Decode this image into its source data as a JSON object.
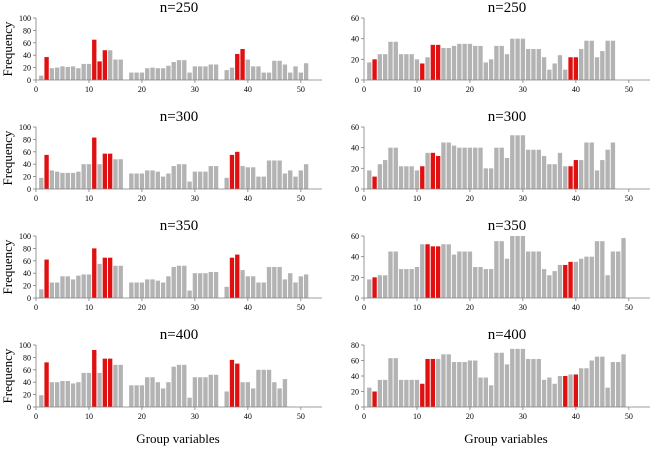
{
  "figure": {
    "x_axis_label": "Group variables",
    "colors": {
      "gray": "#b3b3b3",
      "red": "#e01010",
      "axis": "#7f7f7f",
      "text": "#000000"
    }
  },
  "chart_data": [
    {
      "type": "bar",
      "column": "left",
      "row": 1,
      "title": "n=250",
      "ylabel": "Frequency",
      "xlabel": "",
      "ylim": [
        0,
        100
      ],
      "yticks": [
        0,
        20,
        40,
        60,
        80,
        100
      ],
      "xticks": [
        0,
        10,
        20,
        30,
        40,
        50
      ],
      "x": [
        1,
        2,
        3,
        4,
        5,
        6,
        7,
        8,
        9,
        10,
        11,
        12,
        13,
        14,
        15,
        16,
        17,
        18,
        19,
        20,
        21,
        22,
        23,
        24,
        25,
        26,
        27,
        28,
        29,
        30,
        31,
        32,
        33,
        34,
        35,
        36,
        37,
        38,
        39,
        40,
        41,
        42,
        43,
        44,
        45,
        46,
        47,
        48,
        49,
        50,
        51,
        52,
        53
      ],
      "values": [
        7,
        37,
        19,
        20,
        22,
        21,
        22,
        19,
        26,
        26,
        65,
        30,
        48,
        48,
        33,
        33,
        0,
        12,
        12,
        12,
        19,
        20,
        19,
        19,
        23,
        29,
        32,
        32,
        12,
        22,
        22,
        22,
        25,
        25,
        0,
        16,
        20,
        42,
        50,
        33,
        22,
        22,
        12,
        12,
        31,
        31,
        25,
        12,
        22,
        12,
        27,
        0,
        0
      ],
      "highlight": [
        2,
        11,
        12,
        13,
        38,
        39
      ]
    },
    {
      "type": "bar",
      "column": "left",
      "row": 2,
      "title": "n=300",
      "ylabel": "Frequency",
      "xlabel": "",
      "ylim": [
        0,
        100
      ],
      "yticks": [
        0,
        20,
        40,
        60,
        80,
        100
      ],
      "xticks": [
        0,
        10,
        20,
        30,
        40,
        50
      ],
      "x": [
        1,
        2,
        3,
        4,
        5,
        6,
        7,
        8,
        9,
        10,
        11,
        12,
        13,
        14,
        15,
        16,
        17,
        18,
        19,
        20,
        21,
        22,
        23,
        24,
        25,
        26,
        27,
        28,
        29,
        30,
        31,
        32,
        33,
        34,
        35,
        36,
        37,
        38,
        39,
        40,
        41,
        42,
        43,
        44,
        45,
        46,
        47,
        48,
        49,
        50,
        51,
        52,
        53
      ],
      "values": [
        18,
        55,
        30,
        28,
        26,
        26,
        26,
        28,
        40,
        40,
        83,
        40,
        57,
        57,
        48,
        48,
        0,
        25,
        25,
        25,
        30,
        30,
        28,
        20,
        25,
        37,
        40,
        40,
        12,
        28,
        28,
        28,
        37,
        37,
        0,
        18,
        55,
        60,
        37,
        35,
        35,
        20,
        20,
        46,
        46,
        46,
        25,
        30,
        20,
        30,
        40,
        0,
        0
      ],
      "highlight": [
        2,
        11,
        13,
        14,
        37,
        38
      ]
    },
    {
      "type": "bar",
      "column": "left",
      "row": 3,
      "title": "n=350",
      "ylabel": "Frequency",
      "xlabel": "",
      "ylim": [
        0,
        100
      ],
      "yticks": [
        0,
        20,
        40,
        60,
        80,
        100
      ],
      "xticks": [
        0,
        10,
        20,
        30,
        40,
        50
      ],
      "x": [
        1,
        2,
        3,
        4,
        5,
        6,
        7,
        8,
        9,
        10,
        11,
        12,
        13,
        14,
        15,
        16,
        17,
        18,
        19,
        20,
        21,
        22,
        23,
        24,
        25,
        26,
        27,
        28,
        29,
        30,
        31,
        32,
        33,
        34,
        35,
        36,
        37,
        38,
        39,
        40,
        41,
        42,
        43,
        44,
        45,
        46,
        47,
        48,
        49,
        50,
        51,
        52,
        53
      ],
      "values": [
        14,
        62,
        25,
        25,
        35,
        35,
        30,
        36,
        38,
        38,
        80,
        55,
        65,
        65,
        52,
        52,
        0,
        25,
        25,
        25,
        30,
        30,
        28,
        25,
        35,
        50,
        52,
        52,
        12,
        40,
        40,
        40,
        42,
        42,
        0,
        18,
        65,
        70,
        45,
        35,
        35,
        25,
        25,
        50,
        50,
        50,
        30,
        40,
        25,
        35,
        38,
        0,
        0
      ],
      "highlight": [
        2,
        11,
        13,
        14,
        37,
        38
      ]
    },
    {
      "type": "bar",
      "column": "left",
      "row": 4,
      "title": "n=400",
      "ylabel": "Frequency",
      "xlabel": "",
      "ylim": [
        0,
        100
      ],
      "yticks": [
        0,
        20,
        40,
        60,
        80,
        100
      ],
      "xticks": [
        0,
        10,
        20,
        30,
        40,
        50
      ],
      "x": [
        1,
        2,
        3,
        4,
        5,
        6,
        7,
        8,
        9,
        10,
        11,
        12,
        13,
        14,
        15,
        16,
        17,
        18,
        19,
        20,
        21,
        22,
        23,
        24,
        25,
        26,
        27,
        28,
        29,
        30,
        31,
        32,
        33,
        34,
        35,
        36,
        37,
        38,
        39,
        40,
        41,
        42,
        43,
        44,
        45,
        46,
        47,
        48,
        49,
        50,
        51,
        52,
        53
      ],
      "values": [
        19,
        72,
        40,
        40,
        42,
        42,
        38,
        40,
        55,
        55,
        92,
        55,
        78,
        78,
        68,
        68,
        0,
        35,
        35,
        35,
        48,
        48,
        40,
        30,
        40,
        65,
        68,
        68,
        15,
        48,
        48,
        48,
        52,
        52,
        0,
        25,
        76,
        70,
        40,
        40,
        30,
        60,
        60,
        60,
        40,
        30,
        45,
        0,
        0,
        0,
        0,
        0,
        0
      ],
      "highlight": [
        2,
        11,
        13,
        14,
        37,
        38
      ]
    },
    {
      "type": "bar",
      "column": "right",
      "row": 1,
      "title": "n=250",
      "ylabel": "",
      "xlabel": "",
      "ylim": [
        0,
        60
      ],
      "yticks": [
        0,
        20,
        40,
        60
      ],
      "xticks": [
        0,
        10,
        20,
        30,
        40,
        50
      ],
      "x": [
        1,
        2,
        3,
        4,
        5,
        6,
        7,
        8,
        9,
        10,
        11,
        12,
        13,
        14,
        15,
        16,
        17,
        18,
        19,
        20,
        21,
        22,
        23,
        24,
        25,
        26,
        27,
        28,
        29,
        30,
        31,
        32,
        33,
        34,
        35,
        36,
        37,
        38,
        39,
        40,
        41,
        42,
        43,
        44,
        45,
        46,
        47,
        48,
        49,
        50,
        51,
        52,
        53
      ],
      "values": [
        17,
        20,
        25,
        25,
        37,
        37,
        25,
        25,
        25,
        20,
        16,
        22,
        34,
        34,
        31,
        31,
        33,
        35,
        35,
        35,
        33,
        33,
        17,
        20,
        33,
        33,
        25,
        40,
        40,
        40,
        30,
        30,
        30,
        22,
        10,
        16,
        24,
        10,
        22,
        22,
        30,
        38,
        38,
        22,
        28,
        38,
        38,
        0,
        0,
        0,
        0,
        0,
        0
      ],
      "highlight": [
        2,
        11,
        13,
        14,
        39,
        40
      ]
    },
    {
      "type": "bar",
      "column": "right",
      "row": 2,
      "title": "n=300",
      "ylabel": "",
      "xlabel": "",
      "ylim": [
        0,
        60
      ],
      "yticks": [
        0,
        20,
        40,
        60
      ],
      "xticks": [
        0,
        10,
        20,
        30,
        40,
        50
      ],
      "x": [
        1,
        2,
        3,
        4,
        5,
        6,
        7,
        8,
        9,
        10,
        11,
        12,
        13,
        14,
        15,
        16,
        17,
        18,
        19,
        20,
        21,
        22,
        23,
        24,
        25,
        26,
        27,
        28,
        29,
        30,
        31,
        32,
        33,
        34,
        35,
        36,
        37,
        38,
        39,
        40,
        41,
        42,
        43,
        44,
        45,
        46,
        47,
        48,
        49,
        50,
        51,
        52,
        53
      ],
      "values": [
        18,
        12,
        24,
        28,
        40,
        40,
        22,
        22,
        22,
        18,
        22,
        35,
        35,
        32,
        45,
        45,
        42,
        40,
        40,
        40,
        40,
        40,
        20,
        20,
        40,
        40,
        30,
        52,
        52,
        52,
        38,
        38,
        38,
        32,
        24,
        24,
        35,
        22,
        22,
        28,
        28,
        45,
        45,
        18,
        28,
        38,
        45,
        0,
        0,
        0,
        0,
        0,
        0
      ],
      "highlight": [
        2,
        11,
        13,
        14,
        39,
        40
      ]
    },
    {
      "type": "bar",
      "column": "right",
      "row": 3,
      "title": "n=350",
      "ylabel": "",
      "xlabel": "",
      "ylim": [
        0,
        60
      ],
      "yticks": [
        0,
        20,
        40,
        60
      ],
      "xticks": [
        0,
        10,
        20,
        30,
        40,
        50
      ],
      "x": [
        1,
        2,
        3,
        4,
        5,
        6,
        7,
        8,
        9,
        10,
        11,
        12,
        13,
        14,
        15,
        16,
        17,
        18,
        19,
        20,
        21,
        22,
        23,
        24,
        25,
        26,
        27,
        28,
        29,
        30,
        31,
        32,
        33,
        34,
        35,
        36,
        37,
        38,
        39,
        40,
        41,
        42,
        43,
        44,
        45,
        46,
        47,
        48,
        49,
        50,
        51,
        52,
        53
      ],
      "values": [
        18,
        20,
        22,
        22,
        45,
        45,
        28,
        28,
        28,
        30,
        52,
        52,
        50,
        50,
        52,
        52,
        42,
        45,
        45,
        45,
        30,
        30,
        28,
        28,
        55,
        55,
        38,
        60,
        60,
        60,
        45,
        45,
        45,
        28,
        22,
        26,
        32,
        32,
        35,
        35,
        38,
        40,
        40,
        55,
        55,
        22,
        45,
        45,
        58,
        0,
        0,
        0,
        0
      ],
      "highlight": [
        2,
        12,
        13,
        14,
        38,
        39
      ]
    },
    {
      "type": "bar",
      "column": "right",
      "row": 4,
      "title": "n=400",
      "ylabel": "",
      "xlabel": "",
      "ylim": [
        0,
        80
      ],
      "yticks": [
        0,
        20,
        40,
        60,
        80
      ],
      "xticks": [
        0,
        10,
        20,
        30,
        40,
        50
      ],
      "x": [
        1,
        2,
        3,
        4,
        5,
        6,
        7,
        8,
        9,
        10,
        11,
        12,
        13,
        14,
        15,
        16,
        17,
        18,
        19,
        20,
        21,
        22,
        23,
        24,
        25,
        26,
        27,
        28,
        29,
        30,
        31,
        32,
        33,
        34,
        35,
        36,
        37,
        38,
        39,
        40,
        41,
        42,
        43,
        44,
        45,
        46,
        47,
        48,
        49,
        50,
        51,
        52,
        53
      ],
      "values": [
        25,
        20,
        35,
        35,
        63,
        63,
        35,
        35,
        35,
        35,
        30,
        62,
        62,
        62,
        68,
        68,
        58,
        58,
        58,
        60,
        60,
        38,
        38,
        28,
        70,
        70,
        55,
        75,
        75,
        75,
        62,
        62,
        62,
        35,
        38,
        30,
        40,
        40,
        42,
        42,
        50,
        50,
        60,
        65,
        65,
        25,
        58,
        58,
        68,
        0,
        0,
        0,
        0
      ],
      "highlight": [
        2,
        11,
        12,
        13,
        38,
        40
      ]
    }
  ]
}
